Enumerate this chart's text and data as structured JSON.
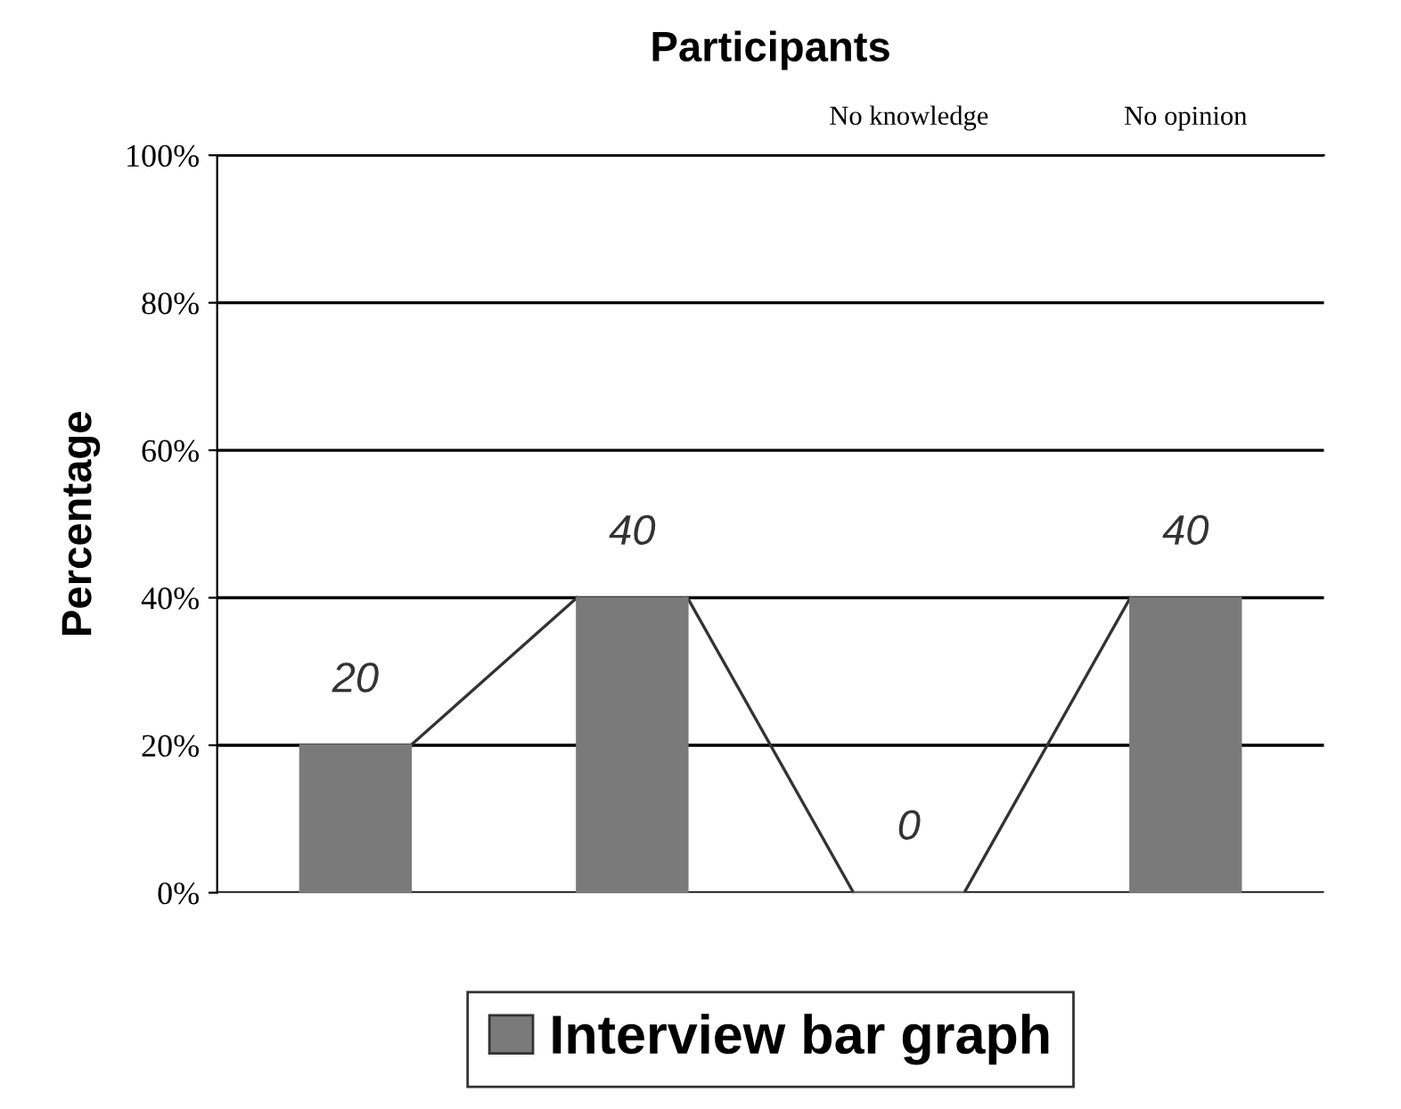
{
  "chart_data": {
    "type": "bar",
    "title": "Participants",
    "ylabel": "Percentage",
    "categories": [
      null,
      null,
      "No knowledge",
      "No opinion"
    ],
    "series": [
      {
        "name": "Interview bar graph",
        "color": "#7a7a7a",
        "values": [
          20,
          40,
          0,
          40
        ]
      }
    ],
    "ylim": [
      0,
      100
    ],
    "yticks": [
      {
        "value": 0,
        "label": "0%"
      },
      {
        "value": 20,
        "label": "20%"
      },
      {
        "value": 40,
        "label": "40%"
      },
      {
        "value": 60,
        "label": "60%"
      },
      {
        "value": 80,
        "label": "80%"
      },
      {
        "value": 100,
        "label": "100%"
      }
    ],
    "grid": "y",
    "legend": "bottom",
    "data_labels": true
  }
}
